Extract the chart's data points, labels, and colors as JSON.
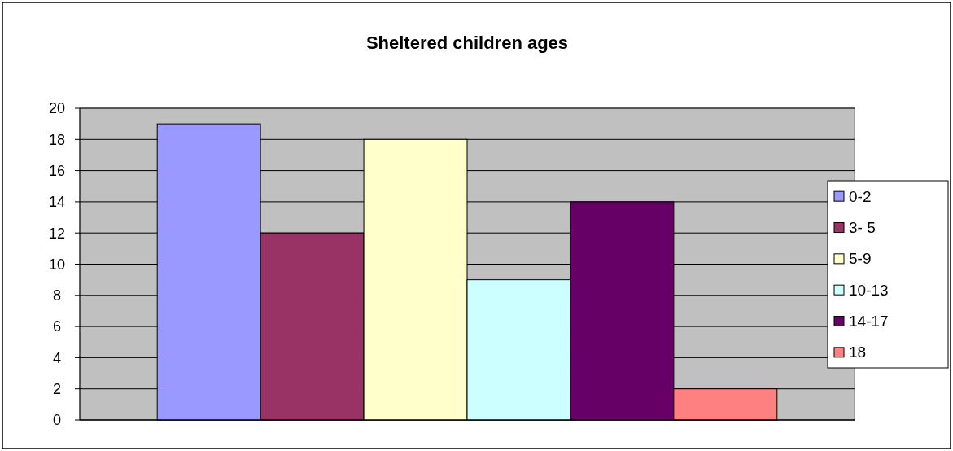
{
  "chart_data": {
    "type": "bar",
    "title": "Sheltered children ages",
    "categories": [
      null
    ],
    "series": [
      {
        "name": "0-2",
        "color": "#9999ff",
        "values": [
          19
        ]
      },
      {
        "name": "3- 5",
        "color": "#993366",
        "values": [
          12
        ]
      },
      {
        "name": "5-9",
        "color": "#ffffcc",
        "values": [
          18
        ]
      },
      {
        "name": "10-13",
        "color": "#ccffff",
        "values": [
          9
        ]
      },
      {
        "name": "14-17",
        "color": "#660066",
        "values": [
          14
        ]
      },
      {
        "name": "18",
        "color": "#ff8080",
        "values": [
          2
        ]
      }
    ],
    "ylim": [
      0,
      20
    ],
    "yticks": [
      0,
      2,
      4,
      6,
      8,
      10,
      12,
      14,
      16,
      18,
      20
    ],
    "grid": "y",
    "legend": "right"
  }
}
